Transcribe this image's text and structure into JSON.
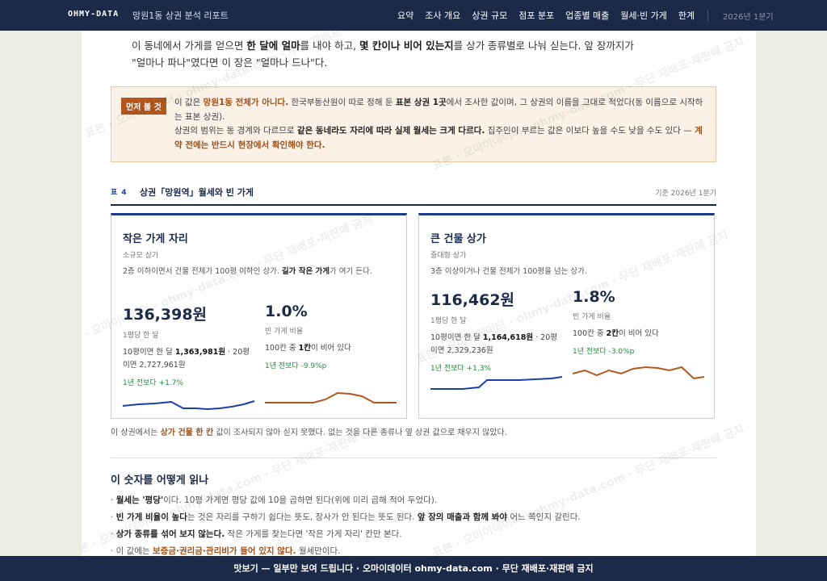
{
  "nav": {
    "brand": "OHMY-DATA",
    "doc_title": "망원1동 상권 분석 리포트",
    "links": [
      "요약",
      "조사 개요",
      "상권 규모",
      "점포 분포",
      "업종별 매출",
      "월세·빈 가게",
      "한계"
    ],
    "date": "2026년 1분기"
  },
  "intro": {
    "part1": "이 동네에서 가게를 얻으면 ",
    "b1": "한 달에 얼마",
    "part2": "를 내야 하고, ",
    "b2": "몇 칸이나 비어 있는지",
    "part3": "를 상가 종류별로 나눠 싣는다. 앞 장까지가 \"얼마나 파나\"였다면 이 장은 \"얼마나 드나\"다."
  },
  "notice": {
    "tag": "먼저 볼 것",
    "t1": "이 값은 ",
    "h1": "망원1동 전체가 아니다.",
    "t2": " 한국부동산원이 따로 정해 둔 ",
    "b1": "표본 상권 1곳",
    "t3": "에서 조사한 값이며, 그 상권의 이름을 그대로 적었다(동 이름으로 시작하는 표본 상권).",
    "t4": "상권의 범위는 동 경계와 다르므로 ",
    "b2": "같은 동네라도 자리에 따라 실제 월세는 크게 다르다.",
    "t5": " 집주인이 부르는 값은 이보다 높을 수도 낮을 수도 있다 — ",
    "h2": "계약 전에는 반드시 현장에서 확인해야 한다."
  },
  "table": {
    "label": "표 4",
    "title": "상권「망원역」월세와 빈 가게",
    "date": "기준 2026년 1분기"
  },
  "cards": [
    {
      "title": "작은 가게 자리",
      "subtitle": "소규모 상가",
      "desc1": "2층 이하이면서 건물 전체가 100평 이하인 상가. ",
      "desc_b": "길가 작은 가게",
      "desc2": "가 여기 든다.",
      "rent": {
        "value": "136,398원",
        "unit": "1평당 한 달",
        "note1": "10평이면 한 달 ",
        "note_b": "1,363,981원",
        "note2": " · 20평이면 2,727,961원",
        "change": "1년 전보다 +1.7%"
      },
      "vacancy": {
        "value": "1.0%",
        "unit": "빈 가게 비율",
        "note1": "100칸 중 ",
        "note_b": "1칸",
        "note2": "이 비어 있다",
        "change": "1년 전보다 -9.9%p"
      }
    },
    {
      "title": "큰 건물 상가",
      "subtitle": "중대형 상가",
      "desc1": "3층 이상이거나 건물 전체가 100평을 넘는 상가.",
      "desc_b": "",
      "desc2": "",
      "rent": {
        "value": "116,462원",
        "unit": "1평당 한 달",
        "note1": "10평이면 한 달 ",
        "note_b": "1,164,618원",
        "note2": " · 20평이면 2,329,236원",
        "change": "1년 전보다 +1.3%"
      },
      "vacancy": {
        "value": "1.8%",
        "unit": "빈 가게 비율",
        "note1": "100칸 중 ",
        "note_b": "2칸",
        "note2": "이 비어 있다",
        "change": "1년 전보다 -3.0%p"
      }
    }
  ],
  "colors": {
    "rent_line": "#1c3fa8",
    "vacancy_line": "#b3571d",
    "accent": "#1c2a4a"
  },
  "footnote": {
    "t1": "이 상권에서는 ",
    "h": "상가 건물 한 칸",
    "t2": " 값이 조사되지 않아 싣지 못했다. 없는 것을 다른 종류나 옆 상권 값으로 채우지 않았다."
  },
  "howto": {
    "title": "이 숫자를 어떻게 읽나",
    "l1a": "· ",
    "l1b": "월세는 '평당'",
    "l1c": "이다. 10평 가게면 평당 값에 10을 곱하면 된다(위에 미리 곱해 적어 두었다).",
    "l2a": "· ",
    "l2b": "빈 가게 비율이 높다",
    "l2c": "는 것은 자리를 구하기 쉽다는 뜻도, 장사가 안 된다는 뜻도 된다. ",
    "l2d": "앞 장의 매출과 함께 봐야",
    "l2e": " 어느 쪽인지 갈린다.",
    "l3a": "· ",
    "l3b": "상가 종류를 섞어 보지 않는다.",
    "l3c": " 작은 가게를 찾는다면 '작은 가게 자리' 칸만 본다.",
    "l4a": "· 이 값에는 ",
    "l4b": "보증금·권리금·관리비가 들어 있지 않다.",
    "l4c": " 월세만이다."
  },
  "watermark": "표본 · 오마이데이터 · ohmy-data.com · 무단 재배포·재판매 금지",
  "bottom": "맛보기 — 일부만 보여 드립니다 · 오마이데이터 ohmy-data.com · 무단 재배포·재판매 금지"
}
